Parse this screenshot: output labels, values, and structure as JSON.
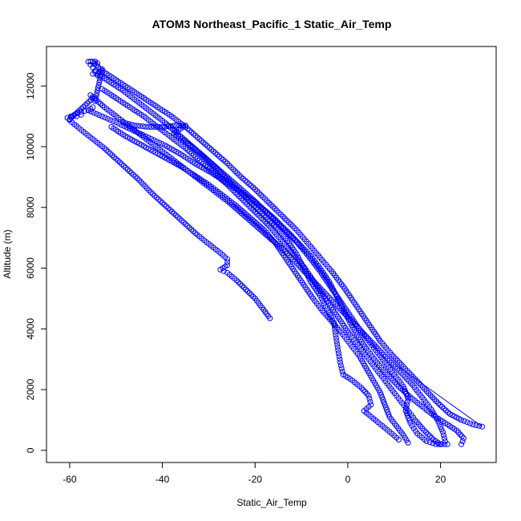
{
  "chart_data": {
    "type": "scatter",
    "title": "ATOM3 Northeast_Pacific_1 Static_Air_Temp",
    "xlabel": "Static_Air_Temp",
    "ylabel": "Altitude (m)",
    "xlim": [
      -65,
      32
    ],
    "ylim": [
      -400,
      13300
    ],
    "x_ticks": [
      -60,
      -40,
      -20,
      0,
      20
    ],
    "y_ticks": [
      0,
      2000,
      4000,
      6000,
      8000,
      10000,
      12000
    ],
    "marker": "open-circle",
    "color": "#0000ff",
    "grid": false,
    "legend": "none",
    "series": [
      {
        "points": [
          [
            -16.8,
            4350
          ],
          [
            -18.5,
            4700
          ],
          [
            -20.0,
            5000
          ],
          [
            -22.0,
            5300
          ],
          [
            -24.0,
            5600
          ],
          [
            -26.0,
            5850
          ],
          [
            -27.5,
            5950
          ],
          [
            -26.0,
            6100
          ],
          [
            -26.0,
            6300
          ],
          [
            -27.5,
            6500
          ],
          [
            -30.0,
            6800
          ],
          [
            -32.5,
            7100
          ],
          [
            -35.0,
            7450
          ],
          [
            -37.5,
            7800
          ],
          [
            -40.0,
            8150
          ],
          [
            -42.5,
            8500
          ],
          [
            -45.0,
            8900
          ],
          [
            -47.5,
            9250
          ],
          [
            -50.0,
            9600
          ],
          [
            -52.5,
            9950
          ],
          [
            -55.0,
            10250
          ],
          [
            -57.5,
            10550
          ],
          [
            -59.5,
            10800
          ],
          [
            -60.5,
            10950
          ],
          [
            -59.0,
            11050
          ],
          [
            -57.5,
            11150
          ],
          [
            -56.0,
            11200
          ],
          [
            -55.0,
            11300
          ]
        ]
      },
      {
        "points": [
          [
            -56.0,
            11200
          ],
          [
            -53.0,
            11000
          ],
          [
            -50.0,
            10800
          ],
          [
            -46.5,
            10550
          ],
          [
            -43.0,
            10300
          ],
          [
            -39.5,
            10050
          ],
          [
            -36.0,
            9750
          ],
          [
            -33.0,
            9450
          ],
          [
            -29.5,
            9150
          ],
          [
            -26.0,
            8800
          ],
          [
            -22.5,
            8450
          ],
          [
            -19.0,
            8050
          ],
          [
            -16.0,
            7650
          ],
          [
            -13.0,
            7200
          ],
          [
            -10.5,
            6800
          ],
          [
            -8.0,
            6400
          ],
          [
            -6.0,
            6000
          ],
          [
            -4.0,
            5550
          ],
          [
            -2.5,
            5100
          ],
          [
            -1.0,
            4650
          ],
          [
            0.5,
            4200
          ],
          [
            2.0,
            3800
          ],
          [
            4.0,
            3350
          ],
          [
            6.0,
            2950
          ],
          [
            8.5,
            2500
          ],
          [
            11.0,
            2100
          ],
          [
            13.5,
            1750
          ],
          [
            16.0,
            1450
          ],
          [
            18.5,
            1150
          ],
          [
            21.0,
            900
          ],
          [
            23.5,
            650
          ],
          [
            25.0,
            400
          ],
          [
            24.5,
            200
          ]
        ]
      },
      {
        "points": [
          [
            -55.0,
            12800
          ],
          [
            -53.0,
            12500
          ],
          [
            -50.0,
            12200
          ],
          [
            -47.0,
            11900
          ],
          [
            -44.0,
            11600
          ],
          [
            -41.0,
            11300
          ],
          [
            -38.0,
            11000
          ],
          [
            -35.0,
            10650
          ],
          [
            -32.0,
            10250
          ],
          [
            -29.0,
            9850
          ],
          [
            -26.0,
            9450
          ],
          [
            -23.0,
            9000
          ],
          [
            -20.0,
            8600
          ],
          [
            -17.0,
            8150
          ],
          [
            -14.0,
            7700
          ],
          [
            -11.0,
            7250
          ],
          [
            -8.5,
            6800
          ],
          [
            -6.0,
            6350
          ],
          [
            -3.5,
            5900
          ],
          [
            -1.0,
            5400
          ],
          [
            1.0,
            4950
          ],
          [
            3.0,
            4500
          ],
          [
            5.0,
            4050
          ],
          [
            7.0,
            3600
          ],
          [
            9.5,
            3150
          ],
          [
            12.0,
            2750
          ],
          [
            14.5,
            2350
          ],
          [
            17.0,
            1950
          ],
          [
            19.5,
            1550
          ],
          [
            22.0,
            1200
          ],
          [
            24.5,
            1000
          ],
          [
            27.0,
            850
          ],
          [
            29.0,
            780
          ]
        ]
      },
      {
        "points": [
          [
            -54.5,
            12450
          ],
          [
            -51.5,
            12150
          ],
          [
            -48.5,
            11850
          ],
          [
            -45.5,
            11500
          ],
          [
            -42.5,
            11150
          ],
          [
            -39.5,
            10800
          ],
          [
            -36.5,
            10400
          ],
          [
            -33.5,
            10000
          ],
          [
            -30.5,
            9600
          ],
          [
            -27.5,
            9150
          ],
          [
            -24.5,
            8700
          ],
          [
            -21.5,
            8250
          ],
          [
            -18.5,
            7800
          ],
          [
            -15.5,
            7350
          ],
          [
            -13.0,
            6900
          ],
          [
            -11.0,
            6450
          ],
          [
            -9.5,
            6000
          ],
          [
            -8.0,
            5550
          ],
          [
            -6.0,
            5100
          ],
          [
            -4.5,
            4650
          ],
          [
            -3.0,
            4200
          ],
          [
            -2.5,
            3700
          ],
          [
            -2.0,
            3200
          ],
          [
            -1.5,
            2800
          ],
          [
            -1.0,
            2500
          ],
          [
            1.0,
            2300
          ],
          [
            3.0,
            2050
          ],
          [
            4.5,
            1800
          ],
          [
            5.0,
            1500
          ],
          [
            3.5,
            1300
          ],
          [
            5.5,
            1050
          ],
          [
            7.5,
            800
          ],
          [
            9.5,
            550
          ],
          [
            11.0,
            350
          ]
        ]
      },
      {
        "points": [
          [
            -48.5,
            10800
          ],
          [
            -46.0,
            10700
          ],
          [
            -43.0,
            10650
          ],
          [
            -40.0,
            10650
          ],
          [
            -37.0,
            10700
          ],
          [
            -35.0,
            10700
          ],
          [
            -37.5,
            10450
          ],
          [
            -35.0,
            10150
          ],
          [
            -32.0,
            9800
          ],
          [
            -29.0,
            9400
          ],
          [
            -26.0,
            9000
          ],
          [
            -23.0,
            8600
          ],
          [
            -20.0,
            8200
          ],
          [
            -17.0,
            7750
          ],
          [
            -14.0,
            7300
          ],
          [
            -11.0,
            6850
          ],
          [
            -8.5,
            6400
          ],
          [
            -6.0,
            5900
          ],
          [
            -4.0,
            5450
          ],
          [
            -2.0,
            5000
          ],
          [
            0.0,
            4550
          ],
          [
            2.0,
            4100
          ],
          [
            4.0,
            3700
          ],
          [
            6.0,
            3300
          ],
          [
            8.0,
            2900
          ],
          [
            10.0,
            2500
          ],
          [
            12.0,
            2100
          ],
          [
            13.0,
            1700
          ],
          [
            12.5,
            1300
          ],
          [
            13.5,
            900
          ],
          [
            15.0,
            550
          ],
          [
            17.0,
            300
          ],
          [
            19.0,
            200
          ],
          [
            21.5,
            200
          ]
        ]
      },
      {
        "points": [
          [
            -51.0,
            10650
          ],
          [
            -48.0,
            10350
          ],
          [
            -45.0,
            10100
          ],
          [
            -42.0,
            9850
          ],
          [
            -39.0,
            9600
          ],
          [
            -36.0,
            9350
          ],
          [
            -33.0,
            9050
          ],
          [
            -30.0,
            8750
          ],
          [
            -27.0,
            8400
          ],
          [
            -24.0,
            8050
          ],
          [
            -21.0,
            7650
          ],
          [
            -18.0,
            7250
          ],
          [
            -15.5,
            6800
          ],
          [
            -13.5,
            6350
          ],
          [
            -11.5,
            5900
          ],
          [
            -9.5,
            5450
          ],
          [
            -7.5,
            5000
          ],
          [
            -5.5,
            4600
          ],
          [
            -3.5,
            4250
          ],
          [
            -1.5,
            3900
          ],
          [
            0.5,
            3500
          ],
          [
            2.5,
            3100
          ],
          [
            4.0,
            2700
          ],
          [
            5.5,
            2300
          ],
          [
            7.0,
            1900
          ],
          [
            8.0,
            1500
          ],
          [
            9.0,
            1100
          ],
          [
            10.5,
            800
          ],
          [
            12.0,
            500
          ],
          [
            13.0,
            250
          ]
        ]
      },
      {
        "points": [
          [
            -55.5,
            11700
          ],
          [
            -52.5,
            11300
          ],
          [
            -49.5,
            10950
          ],
          [
            -46.5,
            10600
          ],
          [
            -43.5,
            10250
          ],
          [
            -40.5,
            9900
          ],
          [
            -37.5,
            9550
          ],
          [
            -34.5,
            9200
          ],
          [
            -31.5,
            8850
          ],
          [
            -28.5,
            8500
          ],
          [
            -25.5,
            8150
          ],
          [
            -22.5,
            7750
          ],
          [
            -19.5,
            7350
          ],
          [
            -16.5,
            6950
          ],
          [
            -13.5,
            6550
          ],
          [
            -11.0,
            6150
          ],
          [
            -8.5,
            5750
          ],
          [
            -6.0,
            5350
          ],
          [
            -3.5,
            4950
          ],
          [
            -1.0,
            4550
          ],
          [
            1.5,
            4150
          ],
          [
            4.0,
            3750
          ],
          [
            6.5,
            3350
          ],
          [
            9.0,
            2950
          ],
          [
            11.5,
            2550
          ],
          [
            14.0,
            2150
          ],
          [
            16.0,
            1750
          ],
          [
            18.0,
            1350
          ],
          [
            19.5,
            950
          ],
          [
            20.5,
            600
          ],
          [
            21.0,
            300
          ]
        ]
      },
      {
        "points": [
          [
            -53.0,
            11900
          ],
          [
            -50.0,
            11600
          ],
          [
            -47.0,
            11300
          ],
          [
            -44.0,
            11000
          ],
          [
            -41.0,
            10650
          ],
          [
            -38.0,
            10300
          ],
          [
            -35.0,
            9950
          ],
          [
            -32.0,
            9550
          ],
          [
            -29.0,
            9150
          ],
          [
            -26.0,
            8750
          ],
          [
            -23.0,
            8300
          ],
          [
            -20.0,
            7850
          ],
          [
            -17.0,
            7400
          ],
          [
            -14.5,
            6950
          ],
          [
            -12.0,
            6500
          ],
          [
            -9.5,
            6050
          ],
          [
            -7.5,
            5600
          ],
          [
            -5.5,
            5150
          ],
          [
            -3.5,
            4700
          ],
          [
            -1.5,
            4250
          ],
          [
            0.5,
            3800
          ],
          [
            2.5,
            3400
          ],
          [
            4.5,
            3000
          ],
          [
            6.5,
            2600
          ],
          [
            8.5,
            2200
          ],
          [
            10.5,
            1800
          ],
          [
            12.5,
            1400
          ],
          [
            14.5,
            1000
          ],
          [
            16.5,
            650
          ],
          [
            18.5,
            350
          ],
          [
            20.0,
            200
          ]
        ]
      },
      {
        "points": [
          [
            -56.0,
            12800
          ],
          [
            -55.5,
            12800
          ],
          [
            -55.0,
            12800
          ],
          [
            -54.5,
            12800
          ],
          [
            -54.0,
            12750
          ],
          [
            -55.5,
            12700
          ],
          [
            -55.0,
            12600
          ],
          [
            -54.5,
            12500
          ],
          [
            -55.0,
            12400
          ],
          [
            -54.0,
            12350
          ],
          [
            -53.5,
            12450
          ],
          [
            -53.0,
            12550
          ],
          [
            -54.5,
            11500
          ],
          [
            -55.0,
            11600
          ],
          [
            -60.0,
            10900
          ],
          [
            -59.5,
            11000
          ],
          [
            -58.5,
            11000
          ],
          [
            -57.5,
            11050
          ]
        ]
      }
    ]
  }
}
